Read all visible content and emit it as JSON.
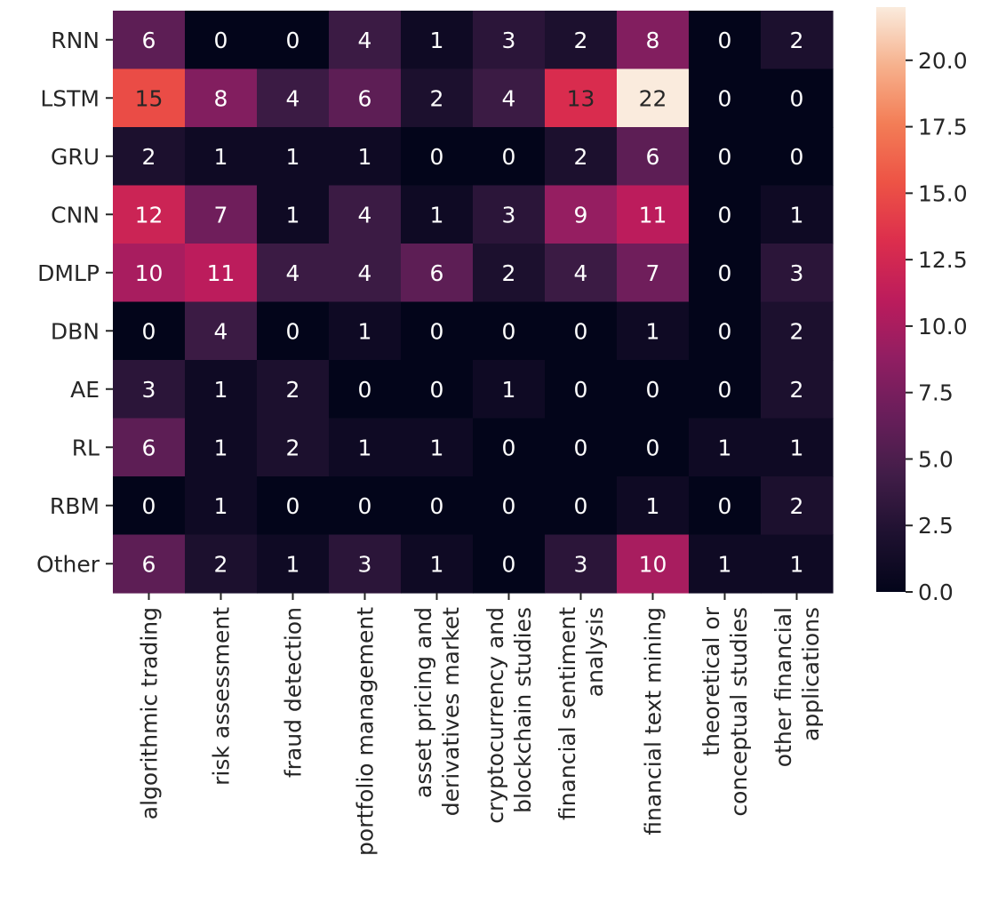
{
  "chart_data": {
    "type": "heatmap",
    "title": "",
    "xlabel": "",
    "ylabel": "",
    "rows": [
      "RNN",
      "LSTM",
      "GRU",
      "CNN",
      "DMLP",
      "DBN",
      "AE",
      "RL",
      "RBM",
      "Other"
    ],
    "columns": [
      [
        "algorithmic trading"
      ],
      [
        "risk assessment"
      ],
      [
        "fraud detection"
      ],
      [
        "portfolio management"
      ],
      [
        "asset pricing and",
        "derivatives market"
      ],
      [
        "cryptocurrency and",
        "blockchain studies"
      ],
      [
        "financial sentiment",
        "analysis"
      ],
      [
        "financial text mining"
      ],
      [
        "theoretical or",
        "conceptual studies"
      ],
      [
        "other financial",
        "applications"
      ]
    ],
    "values": [
      [
        6,
        0,
        0,
        4,
        1,
        3,
        2,
        8,
        0,
        2
      ],
      [
        15,
        8,
        4,
        6,
        2,
        4,
        13,
        22,
        0,
        0
      ],
      [
        2,
        1,
        1,
        1,
        0,
        0,
        2,
        6,
        0,
        0
      ],
      [
        12,
        7,
        1,
        4,
        1,
        3,
        9,
        11,
        0,
        1
      ],
      [
        10,
        11,
        4,
        4,
        6,
        2,
        4,
        7,
        0,
        3
      ],
      [
        0,
        4,
        0,
        1,
        0,
        0,
        0,
        1,
        0,
        2
      ],
      [
        3,
        1,
        2,
        0,
        0,
        1,
        0,
        0,
        0,
        2
      ],
      [
        6,
        1,
        2,
        1,
        1,
        0,
        0,
        0,
        1,
        1
      ],
      [
        0,
        1,
        0,
        0,
        0,
        0,
        0,
        1,
        0,
        2
      ],
      [
        6,
        2,
        1,
        3,
        1,
        0,
        3,
        10,
        1,
        1
      ]
    ],
    "colorbar": {
      "min": 0,
      "max": 22,
      "ticks": [
        0,
        2.5,
        5,
        7.5,
        10,
        12.5,
        15,
        17.5,
        20
      ],
      "tick_labels": [
        "0.0",
        "2.5",
        "5.0",
        "7.5",
        "10.0",
        "12.5",
        "15.0",
        "17.5",
        "20.0"
      ],
      "colormap": "rocket"
    },
    "legend": "colorbar-right",
    "grid": false
  }
}
